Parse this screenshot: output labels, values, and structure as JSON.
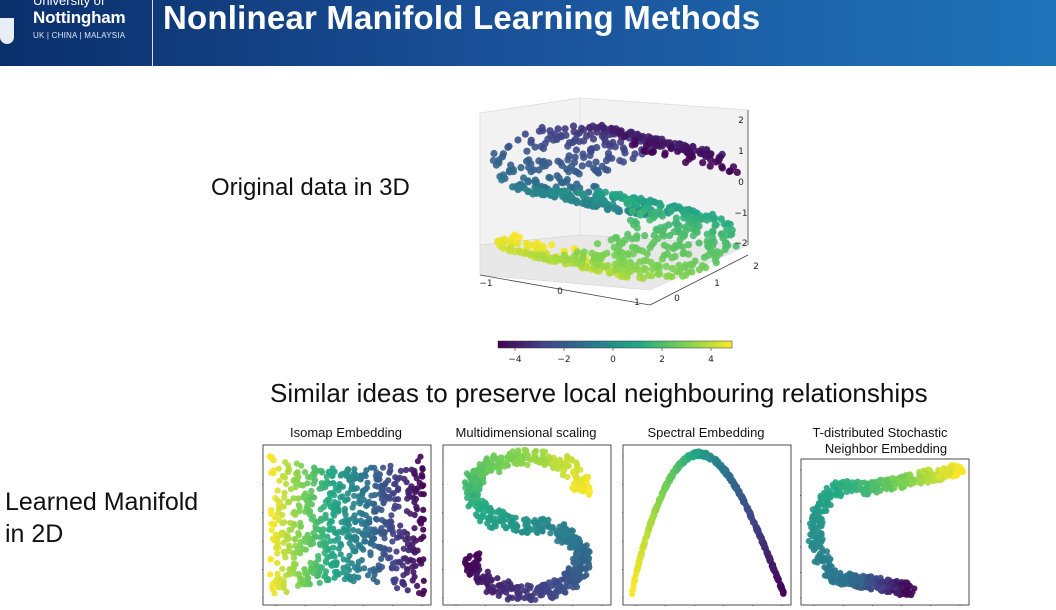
{
  "header": {
    "logo_line1": "University of",
    "logo_line2": "Nottingham",
    "logo_line3": "UK | CHINA | MALAYSIA",
    "title": "Nonlinear Manifold Learning Methods"
  },
  "labels": {
    "original": "Original data in 3D",
    "similar": "Similar ideas to preserve local neighbouring relationships",
    "learned_line1": "Learned Manifold",
    "learned_line2": "in 2D"
  },
  "plot3d": {
    "z_ticks": [
      "2",
      "1",
      "0",
      "−1",
      "−2"
    ],
    "x_ticks": [
      "−1",
      "0",
      "1"
    ],
    "y_ticks": [
      "2",
      "1",
      "0"
    ]
  },
  "colorbar": {
    "ticks": [
      "−4",
      "−2",
      "0",
      "2",
      "4"
    ],
    "range": [
      -5,
      5
    ]
  },
  "embeddings": [
    {
      "title_line1": "Isomap Embedding",
      "title_line2": ""
    },
    {
      "title_line1": "Multidimensional scaling",
      "title_line2": ""
    },
    {
      "title_line1": "Spectral Embedding",
      "title_line2": ""
    },
    {
      "title_line1": "T-distributed Stochastic",
      "title_line2": "Neighbor Embedding"
    }
  ],
  "colors": {
    "header_dark": "#0a2f6b",
    "header_light": "#1f74b9",
    "viridis": [
      "#440154",
      "#414487",
      "#2a788e",
      "#22a884",
      "#7ad151",
      "#fde725"
    ]
  }
}
